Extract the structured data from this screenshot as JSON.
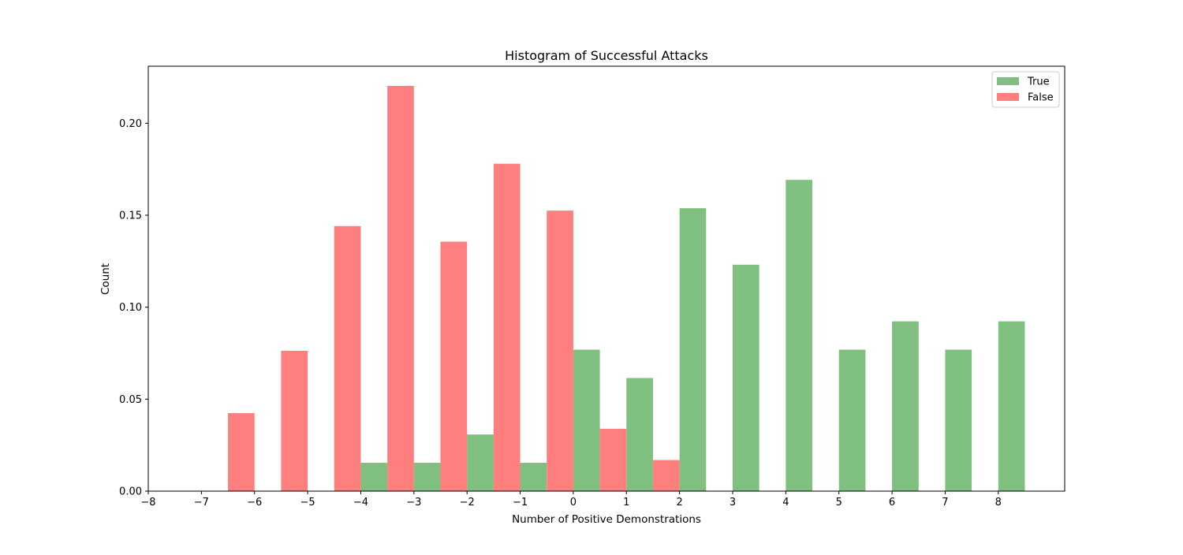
{
  "chart_data": {
    "type": "bar",
    "title": "Histogram of Successful Attacks",
    "xlabel": "Number of Positive Demonstrations",
    "ylabel": "Count",
    "xlim": [
      -8,
      9.25
    ],
    "ylim": [
      0,
      0.231
    ],
    "xticks": [
      -8,
      -7,
      -6,
      -5,
      -4,
      -3,
      -2,
      -1,
      0,
      1,
      2,
      3,
      4,
      5,
      6,
      7,
      8
    ],
    "xtick_labels": [
      "−8",
      "−7",
      "−6",
      "−5",
      "−4",
      "−3",
      "−2",
      "−1",
      "0",
      "1",
      "2",
      "3",
      "4",
      "5",
      "6",
      "7",
      "8"
    ],
    "yticks": [
      0,
      0.05,
      0.1,
      0.15,
      0.2
    ],
    "ytick_labels": [
      "0.00",
      "0.05",
      "0.10",
      "0.15",
      "0.20"
    ],
    "bar_width": 0.5,
    "legend_position": "upper right",
    "grid": false,
    "series": [
      {
        "name": "True",
        "color": "#7fbf7f",
        "offset": 0.25,
        "x": [
          -4,
          -3,
          -2,
          -1,
          0,
          1,
          2,
          3,
          4,
          5,
          6,
          7,
          8
        ],
        "values": [
          0.0154,
          0.0154,
          0.0308,
          0.0154,
          0.0769,
          0.0615,
          0.1538,
          0.1231,
          0.1692,
          0.0769,
          0.0923,
          0.0769,
          0.0923
        ]
      },
      {
        "name": "False",
        "color": "#ff7f7f",
        "offset": -0.25,
        "x": [
          -6,
          -5,
          -4,
          -3,
          -2,
          -1,
          0,
          1,
          2
        ],
        "values": [
          0.0424,
          0.0763,
          0.1441,
          0.2203,
          0.1356,
          0.178,
          0.1525,
          0.0339,
          0.0169
        ]
      }
    ]
  }
}
